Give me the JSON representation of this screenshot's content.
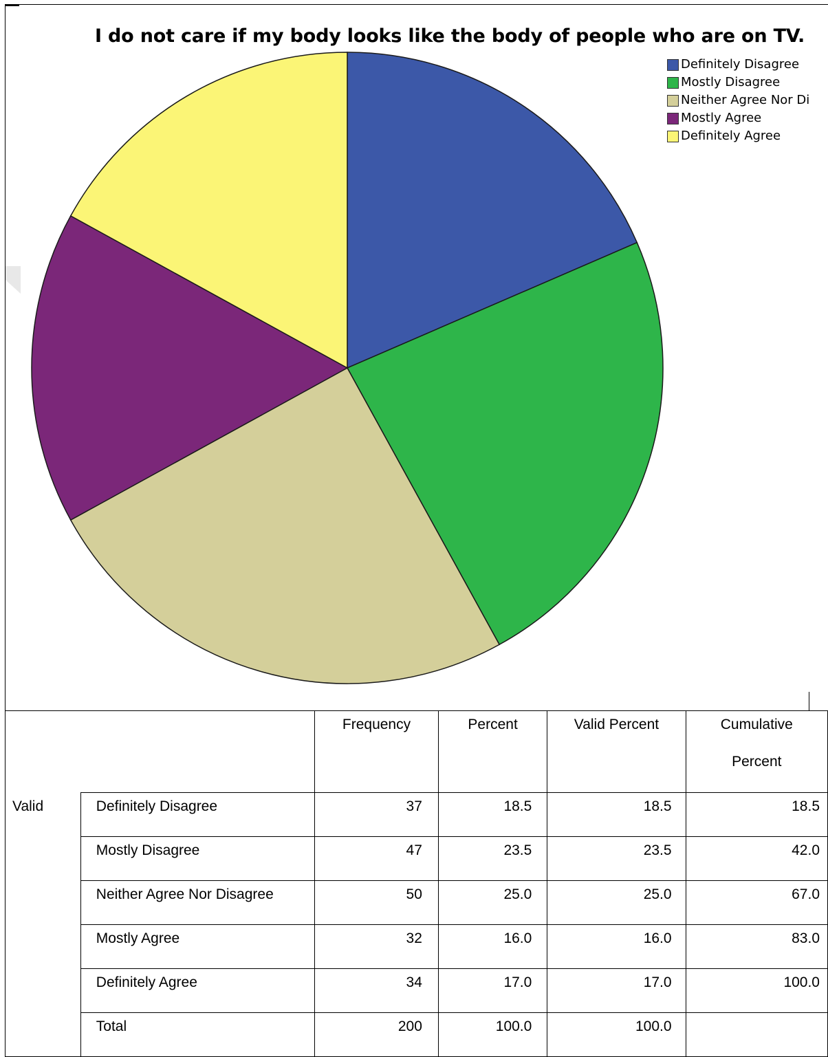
{
  "chart_data": {
    "type": "pie",
    "title": "I do not care if my body looks like the body of people who are on TV.",
    "categories": [
      "Definitely Disagree",
      "Mostly Disagree",
      "Neither Agree Nor Disagree",
      "Mostly Agree",
      "Definitely Agree"
    ],
    "values": [
      18.5,
      23.5,
      25.0,
      16.0,
      17.0
    ],
    "colors": [
      "#3c58a8",
      "#2eb54a",
      "#d4cf9a",
      "#7b2779",
      "#fbf576"
    ],
    "start_angle_deg": 0,
    "direction": "clockwise",
    "legend": {
      "placement": "top-right",
      "labels": [
        "Definitely Disagree",
        "Mostly Disagree",
        "Neither Agree Nor Di",
        "Mostly Agree",
        "Definitely Agree"
      ]
    }
  },
  "table": {
    "headers": {
      "frequency": "Frequency",
      "percent": "Percent",
      "valid_percent": "Valid Percent",
      "cumulative_line1": "Cumulative",
      "cumulative_line2": "Percent"
    },
    "valid_label": "Valid",
    "rows": [
      {
        "label": "Definitely Disagree",
        "frequency": "37",
        "percent": "18.5",
        "valid_percent": "18.5",
        "cumulative": "18.5"
      },
      {
        "label": "Mostly Disagree",
        "frequency": "47",
        "percent": "23.5",
        "valid_percent": "23.5",
        "cumulative": "42.0"
      },
      {
        "label": "Neither Agree Nor Disagree",
        "frequency": "50",
        "percent": "25.0",
        "valid_percent": "25.0",
        "cumulative": "67.0"
      },
      {
        "label": "Mostly Agree",
        "frequency": "32",
        "percent": "16.0",
        "valid_percent": "16.0",
        "cumulative": "83.0"
      },
      {
        "label": "Definitely Agree",
        "frequency": "34",
        "percent": "17.0",
        "valid_percent": "17.0",
        "cumulative": "100.0"
      },
      {
        "label": "Total",
        "frequency": "200",
        "percent": "100.0",
        "valid_percent": "100.0",
        "cumulative": ""
      }
    ]
  }
}
